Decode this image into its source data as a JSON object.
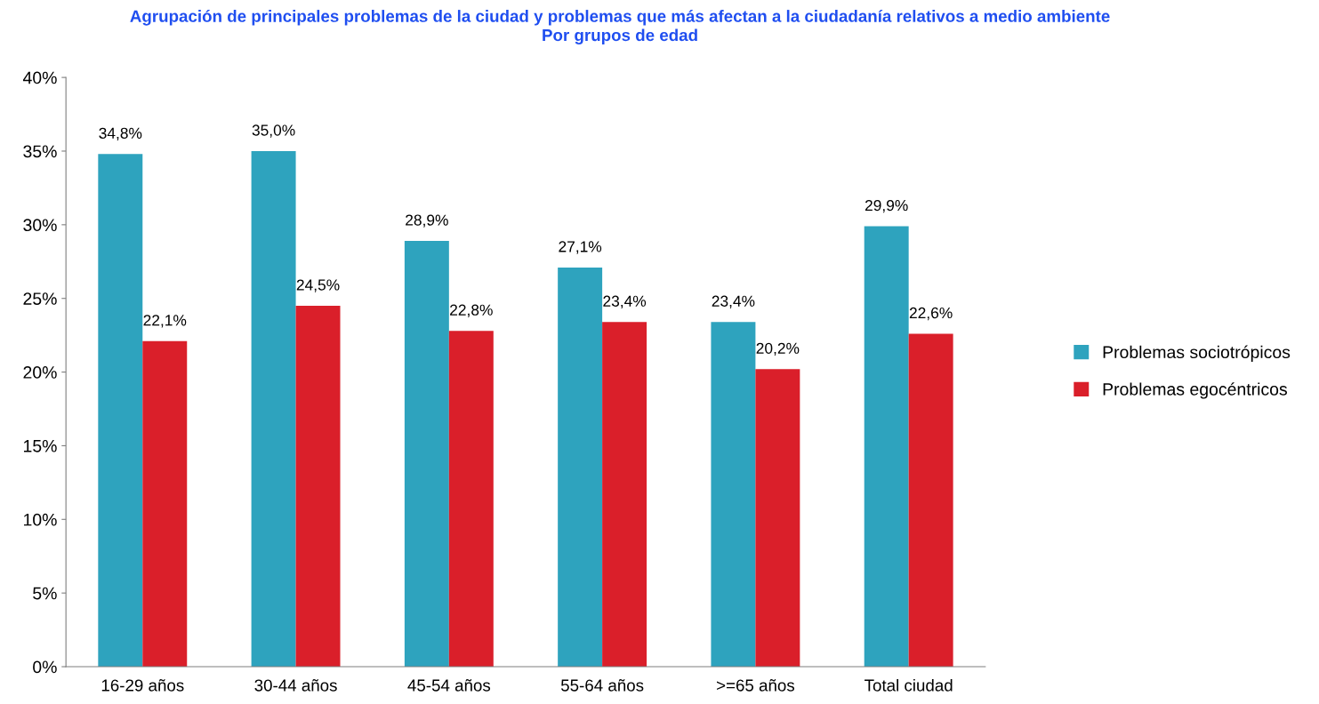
{
  "chart_data": {
    "type": "bar",
    "title": "Agrupación de principales problemas de la ciudad y problemas que más afectan a la ciudadanía relativos a medio ambiente",
    "subtitle": "Por grupos de edad",
    "categories": [
      "16-29 años",
      "30-44 años",
      "45-54 años",
      "55-64 años",
      ">=65 años",
      "Total ciudad"
    ],
    "series": [
      {
        "name": "Problemas sociotrópicos",
        "color": "#2ea3be",
        "values": [
          34.8,
          35.0,
          28.9,
          27.1,
          23.4,
          29.9
        ],
        "value_labels": [
          "34,8%",
          "35,0%",
          "28,9%",
          "27,1%",
          "23,4%",
          "29,9%"
        ]
      },
      {
        "name": "Problemas egocéntricos",
        "color": "#da1f2a",
        "values": [
          22.1,
          24.5,
          22.8,
          23.4,
          20.2,
          22.6
        ],
        "value_labels": [
          "22,1%",
          "24,5%",
          "22,8%",
          "23,4%",
          "20,2%",
          "22,6%"
        ]
      }
    ],
    "ylim": [
      0,
      40
    ],
    "yticks": [
      {
        "value": 0,
        "label": "0%"
      },
      {
        "value": 5,
        "label": "5%"
      },
      {
        "value": 10,
        "label": "10%"
      },
      {
        "value": 15,
        "label": "15%"
      },
      {
        "value": 20,
        "label": "20%"
      },
      {
        "value": 25,
        "label": "25%"
      },
      {
        "value": 30,
        "label": "30%"
      },
      {
        "value": 35,
        "label": "35%"
      },
      {
        "value": 40,
        "label": "40%"
      }
    ],
    "grid": false,
    "legend": "right"
  }
}
